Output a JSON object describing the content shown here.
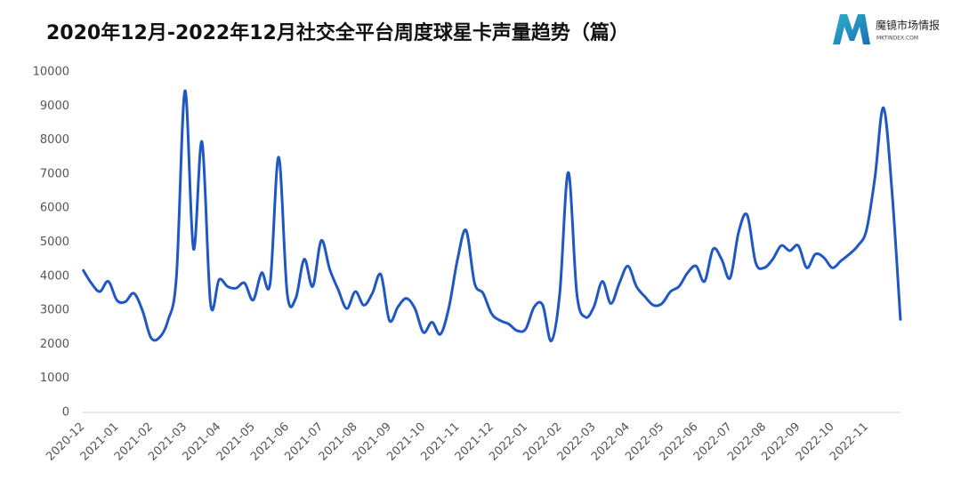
{
  "chart_data": {
    "type": "line",
    "title": "2020年12月-2022年12月社交全平台周度球星卡声量趋势（篇）",
    "categories": [
      "2020-12",
      null,
      null,
      null,
      "2021-01",
      null,
      null,
      null,
      "2021-02",
      null,
      null,
      null,
      "2021-03",
      null,
      null,
      null,
      "2021-04",
      null,
      null,
      null,
      "2021-05",
      null,
      null,
      null,
      "2021-06",
      null,
      null,
      null,
      "2021-07",
      null,
      null,
      null,
      "2021-08",
      null,
      null,
      null,
      "2021-09",
      null,
      null,
      null,
      "2021-10",
      null,
      null,
      null,
      "2021-11",
      null,
      null,
      null,
      "2021-12",
      null,
      null,
      null,
      "2022-01",
      null,
      null,
      null,
      "2022-02",
      null,
      null,
      null,
      "2022-03",
      null,
      null,
      null,
      "2022-04",
      null,
      null,
      null,
      "2022-05",
      null,
      null,
      null,
      "2022-06",
      null,
      null,
      null,
      "2022-07",
      null,
      null,
      null,
      "2022-08",
      null,
      null,
      null,
      "2022-09",
      null,
      null,
      null,
      "2022-10",
      null,
      null,
      null,
      "2022-11",
      null,
      null,
      null,
      null
    ],
    "series": [
      {
        "name": "声量",
        "color": "#1f57c3",
        "values": [
          4200,
          3800,
          3550,
          3850,
          3300,
          3250,
          3500,
          3000,
          2200,
          2200,
          2700,
          4000,
          9450,
          4800,
          7950,
          3200,
          3900,
          3700,
          3650,
          3800,
          3300,
          4100,
          3800,
          7500,
          3500,
          3350,
          4500,
          3700,
          5050,
          4200,
          3600,
          3050,
          3550,
          3150,
          3500,
          4050,
          2700,
          3100,
          3350,
          3050,
          2350,
          2650,
          2300,
          3100,
          4500,
          5350,
          3800,
          3500,
          2900,
          2700,
          2600,
          2400,
          2450,
          3100,
          3150,
          2100,
          3500,
          7050,
          3500,
          2800,
          3100,
          3850,
          3200,
          3800,
          4300,
          3700,
          3400,
          3150,
          3200,
          3550,
          3700,
          4100,
          4300,
          3850,
          4800,
          4500,
          3950,
          5300,
          5800,
          4400,
          4250,
          4500,
          4900,
          4750,
          4900,
          4250,
          4650,
          4550,
          4250,
          4450,
          4650,
          4900,
          5350,
          6900,
          8950,
          6500,
          2700
        ]
      }
    ],
    "ylim": [
      0,
      10000
    ],
    "yticks": [
      0,
      1000,
      2000,
      3000,
      4000,
      5000,
      6000,
      7000,
      8000,
      9000,
      10000
    ]
  },
  "logo": {
    "name": "魔镜市场情报",
    "url": "MKTINDEX.COM"
  }
}
